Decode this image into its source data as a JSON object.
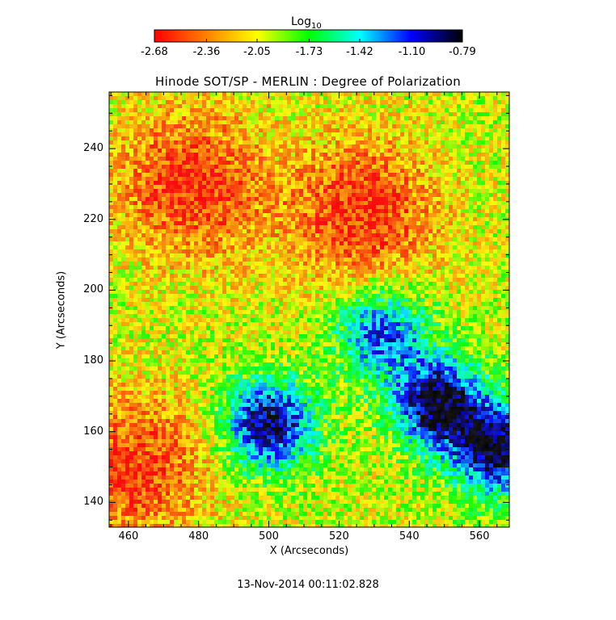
{
  "chart_data": {
    "type": "heatmap",
    "title": "Hinode SOT/SP - MERLIN : Degree of Polarization",
    "xlabel": "X (Arcseconds)",
    "ylabel": "Y (Arcseconds)",
    "xlim": [
      454.5,
      568.5
    ],
    "ylim": [
      133,
      256
    ],
    "x_ticks": [
      460,
      480,
      500,
      520,
      540,
      560
    ],
    "y_ticks": [
      140,
      160,
      180,
      200,
      220,
      240
    ],
    "x_tick_labels": [
      "460",
      "480",
      "500",
      "520",
      "540",
      "560"
    ],
    "y_tick_labels": [
      "140",
      "160",
      "180",
      "200",
      "220",
      "240"
    ],
    "colorbar": {
      "title_main": "Log",
      "title_sub": "10",
      "scale": "log10",
      "range": [
        -2.68,
        -0.79
      ],
      "tick_values": [
        -2.68,
        -2.36,
        -2.05,
        -1.73,
        -1.42,
        -1.1,
        -0.79
      ],
      "tick_labels": [
        "-2.68",
        "-2.36",
        "-2.05",
        "-1.73",
        "-1.42",
        "-1.10",
        "-0.79"
      ],
      "colors": [
        "#ff0000",
        "#ff8000",
        "#ffff00",
        "#00ff00",
        "#00ffff",
        "#0000ff",
        "#000000"
      ]
    },
    "grid": false,
    "features": [
      {
        "kind": "low-polarization region",
        "x": 478,
        "y": 230,
        "level": -2.6
      },
      {
        "kind": "low-polarization region",
        "x": 527,
        "y": 222,
        "level": -2.6
      },
      {
        "kind": "low-polarization region",
        "x": 462,
        "y": 150,
        "level": -2.55
      },
      {
        "kind": "high-polarization region",
        "x": 500,
        "y": 162,
        "level": -0.85
      },
      {
        "kind": "high-polarization region",
        "x": 548,
        "y": 168,
        "level": -0.8
      },
      {
        "kind": "high-polarization region",
        "x": 565,
        "y": 155,
        "level": -0.8
      },
      {
        "kind": "high-polarization region",
        "x": 532,
        "y": 188,
        "level": -1.15
      }
    ]
  },
  "timestamp": "13-Nov-2014 00:11:02.828"
}
